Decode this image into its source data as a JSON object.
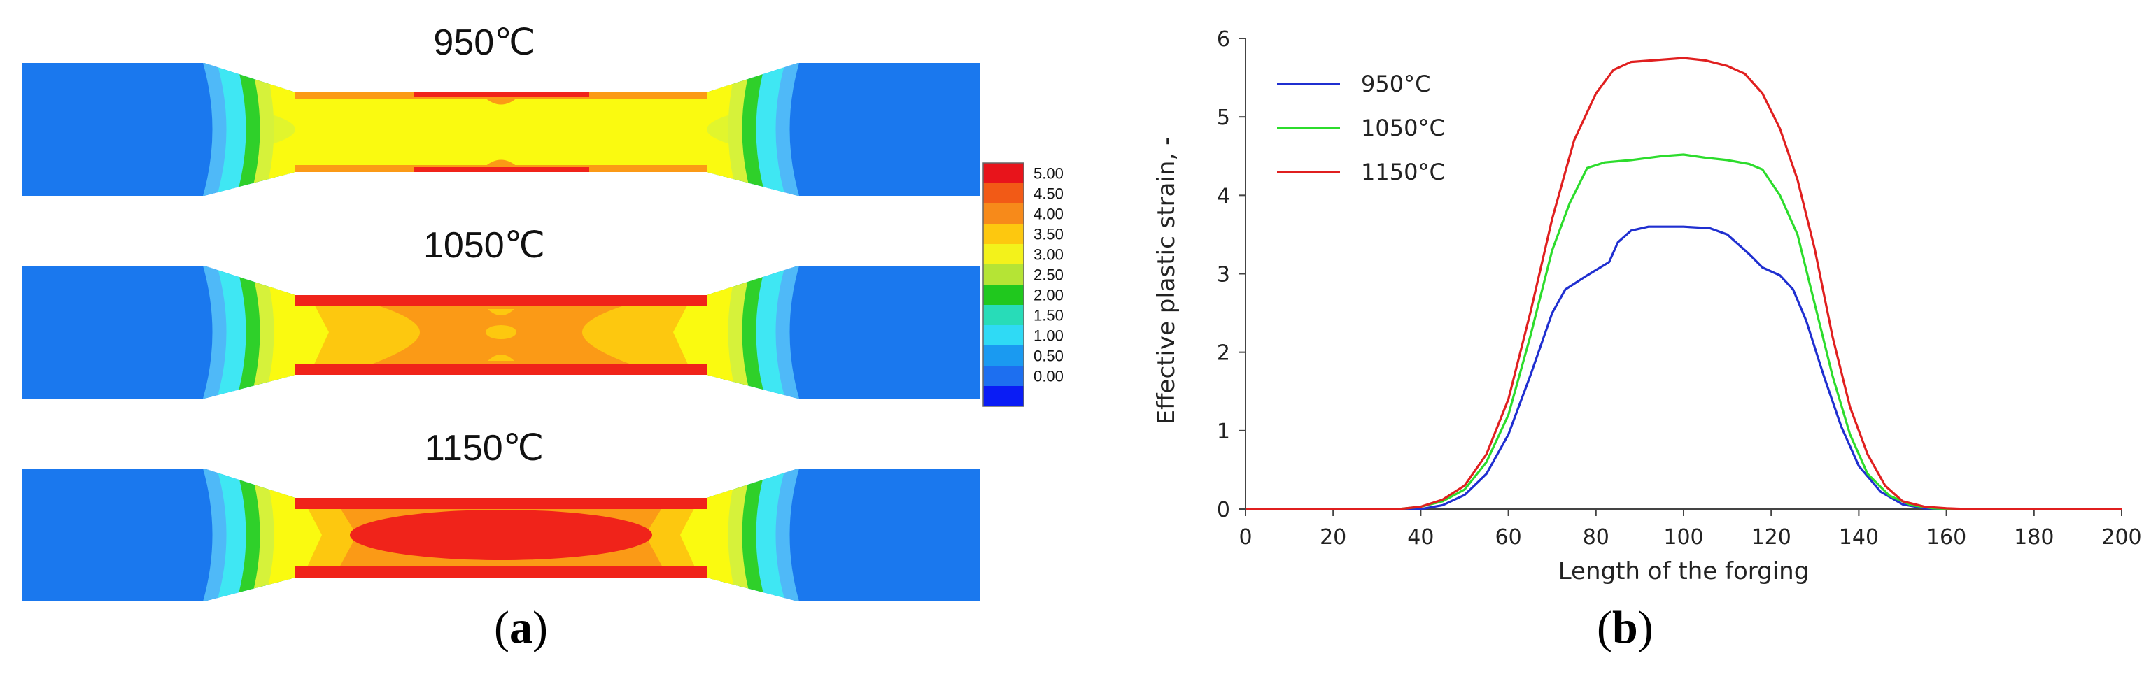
{
  "panel_a": {
    "label": "a",
    "temps": [
      "950℃",
      "1050℃",
      "1150℃"
    ],
    "colorbar": {
      "levels": [
        "5.00",
        "4.50",
        "4.00",
        "3.50",
        "3.00",
        "2.50",
        "2.00",
        "1.50",
        "1.00",
        "0.50",
        "0.00"
      ],
      "colors": [
        "#e8141b",
        "#f25a16",
        "#f78a1a",
        "#fdc80f",
        "#f3f21b",
        "#b5e435",
        "#20c81e",
        "#28dcb8",
        "#2fdaf5",
        "#1a9af1",
        "#1d6ff0",
        "#0a1cf5"
      ]
    },
    "colors": {
      "cool": "#1a78ee",
      "light_blue": "#4fb9f8",
      "cyan": "#3fe7f3",
      "green": "#2fd02a",
      "yellow": "#fafa10",
      "yellow_green": "#d6f23a",
      "orange": "#fb9a16",
      "red": "#f0231a"
    }
  },
  "panel_b": {
    "label": "b"
  },
  "chart_data": {
    "type": "line",
    "xlabel": "Length of the forging",
    "ylabel": "Effective plastic strain, -",
    "xlim": [
      0,
      200
    ],
    "ylim": [
      0,
      6
    ],
    "xticks": [
      0,
      20,
      40,
      60,
      80,
      100,
      120,
      140,
      160,
      180,
      200
    ],
    "yticks": [
      0,
      1,
      2,
      3,
      4,
      5,
      6
    ],
    "grid": false,
    "legend_position": "top-left",
    "series": [
      {
        "name": "950°C",
        "color": "#1f2fd0",
        "points": [
          [
            0,
            0
          ],
          [
            40,
            0
          ],
          [
            45,
            0.05
          ],
          [
            50,
            0.18
          ],
          [
            55,
            0.45
          ],
          [
            60,
            0.95
          ],
          [
            65,
            1.7
          ],
          [
            70,
            2.5
          ],
          [
            73,
            2.8
          ],
          [
            78,
            2.98
          ],
          [
            83,
            3.15
          ],
          [
            85,
            3.4
          ],
          [
            88,
            3.55
          ],
          [
            92,
            3.6
          ],
          [
            100,
            3.6
          ],
          [
            106,
            3.58
          ],
          [
            110,
            3.5
          ],
          [
            115,
            3.25
          ],
          [
            118,
            3.08
          ],
          [
            122,
            2.98
          ],
          [
            125,
            2.8
          ],
          [
            128,
            2.4
          ],
          [
            132,
            1.7
          ],
          [
            136,
            1.05
          ],
          [
            140,
            0.55
          ],
          [
            145,
            0.22
          ],
          [
            150,
            0.06
          ],
          [
            155,
            0.01
          ],
          [
            160,
            0
          ],
          [
            200,
            0
          ]
        ]
      },
      {
        "name": "1050°C",
        "color": "#2cdc2c",
        "points": [
          [
            0,
            0
          ],
          [
            35,
            0
          ],
          [
            40,
            0.03
          ],
          [
            45,
            0.1
          ],
          [
            50,
            0.25
          ],
          [
            55,
            0.6
          ],
          [
            60,
            1.2
          ],
          [
            65,
            2.2
          ],
          [
            70,
            3.3
          ],
          [
            74,
            3.9
          ],
          [
            78,
            4.35
          ],
          [
            82,
            4.42
          ],
          [
            88,
            4.45
          ],
          [
            95,
            4.5
          ],
          [
            100,
            4.52
          ],
          [
            105,
            4.48
          ],
          [
            110,
            4.45
          ],
          [
            115,
            4.4
          ],
          [
            118,
            4.33
          ],
          [
            122,
            4.0
          ],
          [
            126,
            3.5
          ],
          [
            130,
            2.6
          ],
          [
            134,
            1.7
          ],
          [
            138,
            0.95
          ],
          [
            142,
            0.45
          ],
          [
            147,
            0.17
          ],
          [
            152,
            0.05
          ],
          [
            157,
            0.01
          ],
          [
            162,
            0
          ],
          [
            200,
            0
          ]
        ]
      },
      {
        "name": "1150°C",
        "color": "#e01f1f",
        "points": [
          [
            0,
            0
          ],
          [
            35,
            0
          ],
          [
            40,
            0.03
          ],
          [
            45,
            0.12
          ],
          [
            50,
            0.3
          ],
          [
            55,
            0.7
          ],
          [
            60,
            1.4
          ],
          [
            65,
            2.5
          ],
          [
            70,
            3.7
          ],
          [
            75,
            4.7
          ],
          [
            80,
            5.3
          ],
          [
            84,
            5.6
          ],
          [
            88,
            5.7
          ],
          [
            95,
            5.73
          ],
          [
            100,
            5.75
          ],
          [
            105,
            5.72
          ],
          [
            110,
            5.65
          ],
          [
            114,
            5.55
          ],
          [
            118,
            5.3
          ],
          [
            122,
            4.85
          ],
          [
            126,
            4.2
          ],
          [
            130,
            3.3
          ],
          [
            134,
            2.2
          ],
          [
            138,
            1.3
          ],
          [
            142,
            0.7
          ],
          [
            146,
            0.3
          ],
          [
            150,
            0.1
          ],
          [
            155,
            0.03
          ],
          [
            160,
            0.01
          ],
          [
            165,
            0
          ],
          [
            200,
            0
          ]
        ]
      }
    ]
  }
}
